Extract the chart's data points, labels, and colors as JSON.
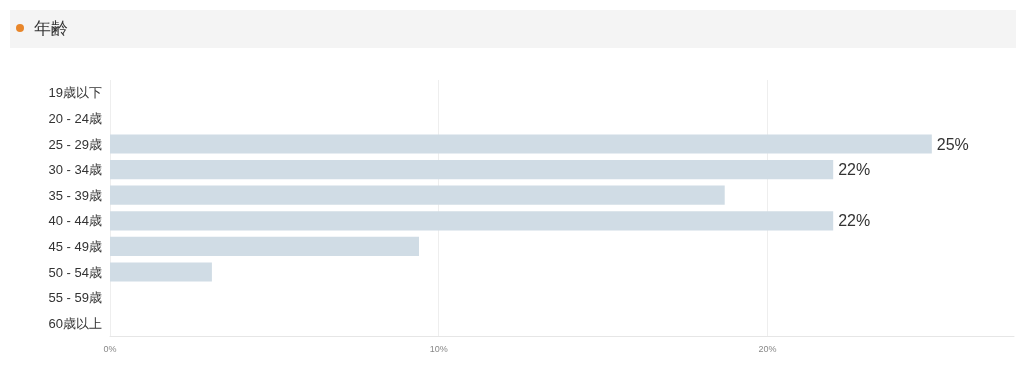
{
  "chart_data": {
    "type": "bar",
    "orientation": "horizontal",
    "title": "年齢",
    "categories": [
      "19歳以下",
      "20 - 24歳",
      "25 - 29歳",
      "30 - 34歳",
      "35 - 39歳",
      "40 - 44歳",
      "45 - 49歳",
      "50 - 54歳",
      "55 - 59歳",
      "60歳以上"
    ],
    "values": [
      0,
      0,
      25,
      22,
      18.7,
      22,
      9.4,
      3.1,
      0,
      0
    ],
    "value_labels": [
      null,
      null,
      "25%",
      "22%",
      null,
      "22%",
      null,
      null,
      null,
      null
    ],
    "color": "#d0dce5",
    "xlim": [
      0,
      27.5
    ],
    "xticks": [
      {
        "value": 0,
        "label": "0%"
      },
      {
        "value": 10,
        "label": "10%"
      },
      {
        "value": 20,
        "label": "20%"
      }
    ],
    "grid": "x"
  }
}
